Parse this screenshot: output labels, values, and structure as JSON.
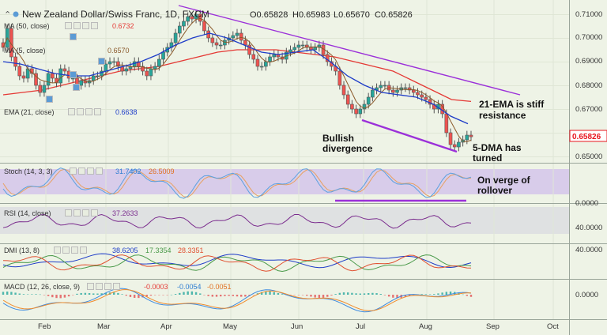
{
  "header": {
    "instrument": "New Zealand Dollar/Swiss Franc, 1D, FXCM",
    "ohlc": [
      "O0.65828",
      "H0.65983",
      "L0.65670",
      "C0.65826"
    ]
  },
  "indicator_labels": {
    "ma50": "MA (50, close)",
    "ma50_value": "0.6732",
    "ma5": "MA (5, close)",
    "ma5_value": "0.6570",
    "ema21": "EMA (21, close)",
    "ema21_value": "0.6638",
    "stoch": "Stoch (14, 3, 3)",
    "stoch_k": "31.7402",
    "stoch_d": "26.5009",
    "rsi": "RSI (14, close)",
    "rsi_value": "37.2633",
    "dmi": "DMI (13, 8)",
    "dmi_adx": "38.6205",
    "dmi_plus": "17.3354",
    "dmi_minus": "28.3351",
    "macd": "MACD (12, 26, close, 9)",
    "macd_hist": "-0.0003",
    "macd_line": "-0.0054",
    "macd_signal": "-0.0051"
  },
  "annotations": {
    "ema_resistance": "21-EMA is stiff resistance",
    "bullish": "Bullish divergence",
    "dma_turned": "5-DMA has turned",
    "rollover": "On verge of rollover"
  },
  "colors": {
    "up": "#26a69a",
    "down": "#ef5350",
    "candle_stroke": "#555555",
    "ma50": "#e53935",
    "ema21": "#1e3cc8",
    "ma5": "#8b5a2b",
    "trend": "#9b30d9",
    "price_tag": "#e8141e",
    "stoch_band": "#c8b8e8",
    "stoch_k": "#5aa0e0",
    "stoch_d": "#e8a060",
    "rsi": "#7b2d8e",
    "dmi_adx": "#1e3cc8",
    "dmi_plus": "#4a9a4a",
    "dmi_minus": "#e05030",
    "macd_line": "#3d8be0",
    "macd_signal": "#f08c2c"
  },
  "chart_data": {
    "type": "candlestick",
    "title": "New Zealand Dollar/Swiss Franc, 1D, FXCM",
    "x_axis": {
      "tick_labels": [
        "Feb",
        "Mar",
        "Apr",
        "May",
        "Jun",
        "Jul",
        "Aug",
        "Sep",
        "Oct"
      ]
    },
    "price_axis": {
      "tick_labels": [
        "0.71000",
        "0.70000",
        "0.69000",
        "0.68000",
        "0.67000",
        "0.66000",
        "0.65000"
      ],
      "last_price": "0.65826",
      "ylim": [
        0.645,
        0.713
      ]
    },
    "price_series": [
      0.696,
      0.704,
      0.692,
      0.688,
      0.684,
      0.683,
      0.687,
      0.685,
      0.68,
      0.677,
      0.68,
      0.685,
      0.683,
      0.681,
      0.687,
      0.686,
      0.683,
      0.683,
      0.68,
      0.682,
      0.681,
      0.682,
      0.684,
      0.684,
      0.686,
      0.689,
      0.69,
      0.69,
      0.688,
      0.686,
      0.687,
      0.688,
      0.69,
      0.688,
      0.686,
      0.684,
      0.687,
      0.688,
      0.691,
      0.694,
      0.696,
      0.698,
      0.702,
      0.705,
      0.707,
      0.709,
      0.708,
      0.71,
      0.707,
      0.703,
      0.7,
      0.698,
      0.697,
      0.697,
      0.699,
      0.7,
      0.701,
      0.702,
      0.699,
      0.697,
      0.693,
      0.691,
      0.688,
      0.688,
      0.69,
      0.692,
      0.693,
      0.692,
      0.691,
      0.694,
      0.695,
      0.696,
      0.697,
      0.697,
      0.696,
      0.695,
      0.696,
      0.697,
      0.693,
      0.69,
      0.688,
      0.686,
      0.68,
      0.676,
      0.672,
      0.67,
      0.668,
      0.67,
      0.672,
      0.675,
      0.678,
      0.679,
      0.68,
      0.68,
      0.678,
      0.677,
      0.678,
      0.679,
      0.679,
      0.678,
      0.677,
      0.676,
      0.675,
      0.674,
      0.672,
      0.67,
      0.672,
      0.668,
      0.66,
      0.655,
      0.654,
      0.656,
      0.657,
      0.659,
      0.6583
    ],
    "series": [
      {
        "name": "MA (50, close)",
        "y": [
          0.676,
          0.677,
          0.678,
          0.68,
          0.682,
          0.684,
          0.686,
          0.687,
          0.688,
          0.69,
          0.692,
          0.694,
          0.695,
          0.695,
          0.695,
          0.694,
          0.693,
          0.692,
          0.69,
          0.688,
          0.686,
          0.682,
          0.678,
          0.674,
          0.6732
        ]
      },
      {
        "name": "EMA (21, close)",
        "y": [
          0.69,
          0.689,
          0.687,
          0.685,
          0.684,
          0.684,
          0.686,
          0.688,
          0.69,
          0.693,
          0.697,
          0.7,
          0.702,
          0.7,
          0.697,
          0.694,
          0.693,
          0.694,
          0.695,
          0.69,
          0.684,
          0.68,
          0.677,
          0.676,
          0.675,
          0.672,
          0.667,
          0.6638
        ]
      }
    ],
    "trendlines": [
      {
        "from": [
          "Apr",
          0.712
        ],
        "to": [
          "Sep",
          0.677
        ]
      },
      {
        "from": [
          "Jun",
          0.667
        ],
        "to": [
          "Aug",
          0.6525
        ]
      }
    ],
    "panels": [
      {
        "name": "Stoch (14, 3, 3)",
        "tick_labels": [
          "0.0000"
        ]
      },
      {
        "name": "RSI (14, close)",
        "tick_labels": [
          "40.0000"
        ]
      },
      {
        "name": "DMI (13, 8)",
        "tick_labels": [
          "40.0000"
        ]
      },
      {
        "name": "MACD (12, 26, close, 9)",
        "tick_labels": [
          "0.0000"
        ]
      }
    ]
  }
}
